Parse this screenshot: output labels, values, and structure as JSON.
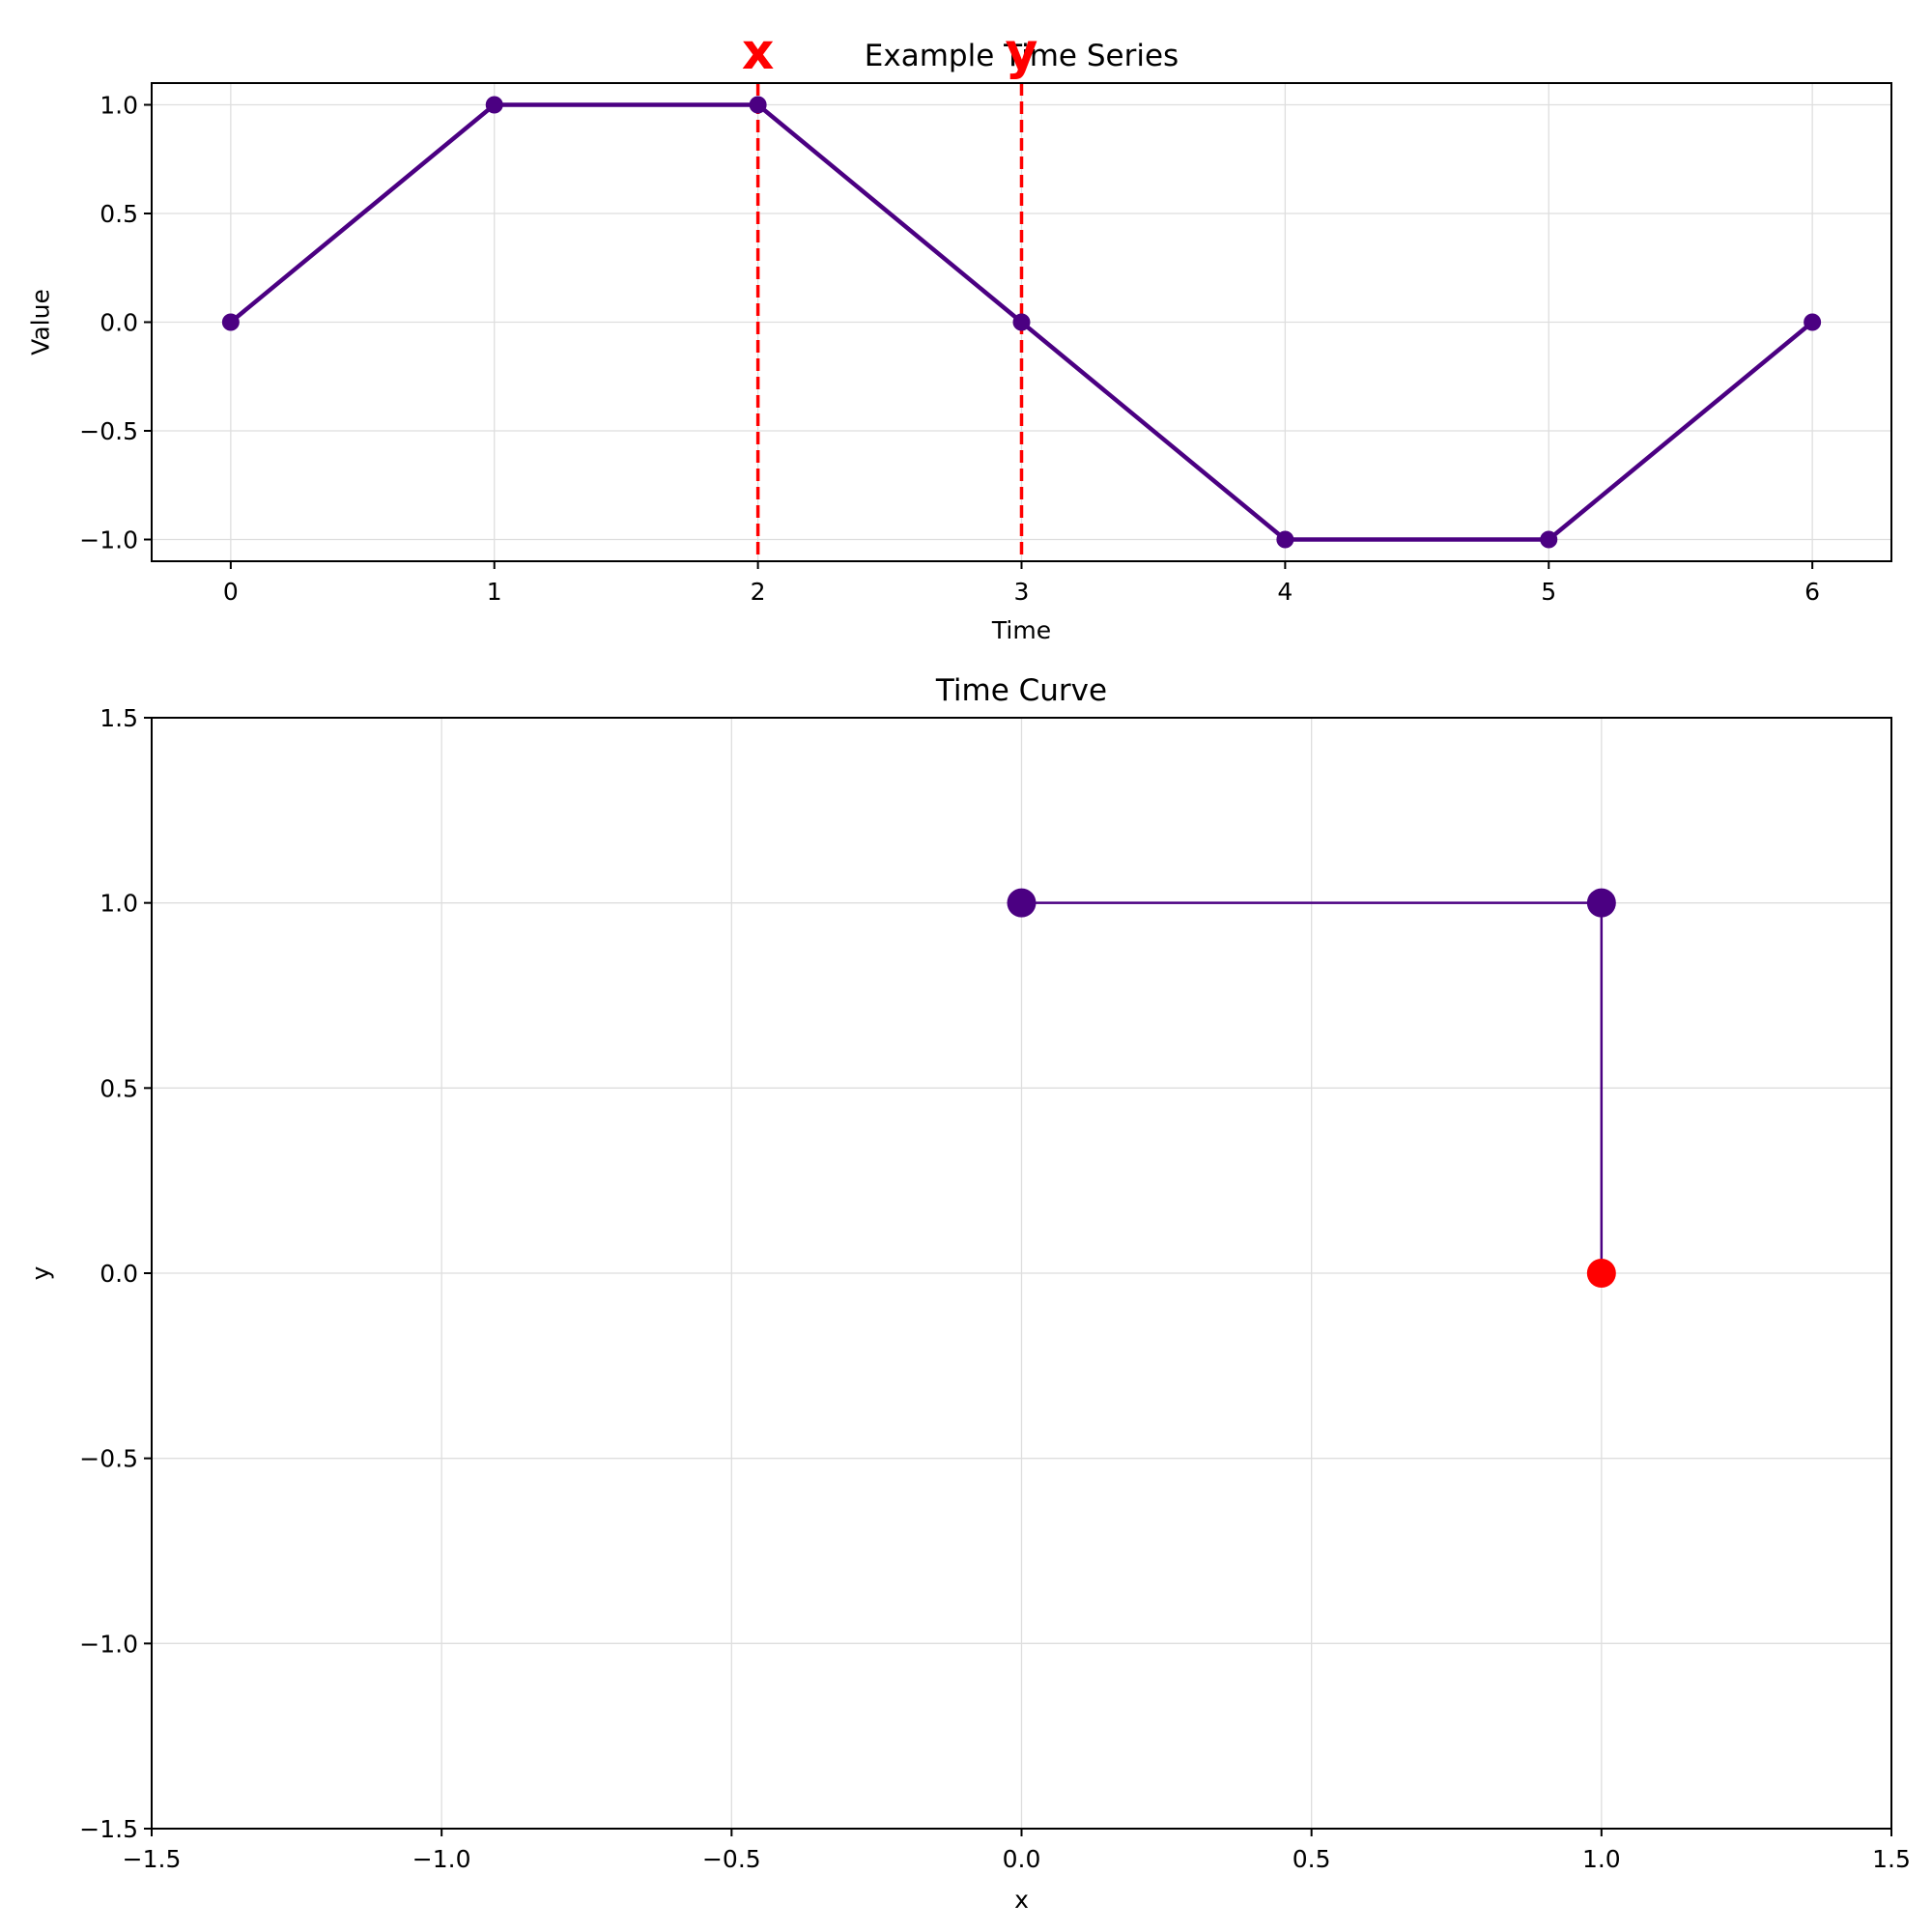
{
  "chart_data": [
    {
      "type": "line",
      "title": "Example Time Series",
      "xlabel": "Time",
      "ylabel": "Value",
      "xlim": [
        -0.3,
        6.3
      ],
      "ylim": [
        -1.1,
        1.1
      ],
      "xticks": [
        0,
        1,
        2,
        3,
        4,
        5,
        6
      ],
      "yticks": [
        -1.0,
        -0.5,
        0.0,
        0.5,
        1.0
      ],
      "xtick_labels": [
        "0",
        "1",
        "2",
        "3",
        "4",
        "5",
        "6"
      ],
      "ytick_labels": [
        "−1.0",
        "−0.5",
        "0.0",
        "0.5",
        "1.0"
      ],
      "grid": true,
      "series": [
        {
          "x": [
            0,
            1,
            2,
            3,
            4,
            5,
            6
          ],
          "y": [
            0,
            1,
            1,
            0,
            -1,
            -1,
            0
          ],
          "color": "#4b0082",
          "marker": "circle"
        }
      ],
      "vlines": [
        {
          "x": 2,
          "label": "x",
          "color": "#ff0000",
          "style": "dashed"
        },
        {
          "x": 3,
          "label": "y",
          "color": "#ff0000",
          "style": "dashed"
        }
      ]
    },
    {
      "type": "line",
      "title": "Time Curve",
      "xlabel": "x",
      "ylabel": "y",
      "xlim": [
        -1.5,
        1.5
      ],
      "ylim": [
        -1.5,
        1.5
      ],
      "xticks": [
        -1.5,
        -1.0,
        -0.5,
        0.0,
        0.5,
        1.0,
        1.5
      ],
      "yticks": [
        -1.5,
        -1.0,
        -0.5,
        0.0,
        0.5,
        1.0,
        1.5
      ],
      "xtick_labels": [
        "−1.5",
        "−1.0",
        "−0.5",
        "0.0",
        "0.5",
        "1.0",
        "1.5"
      ],
      "ytick_labels": [
        "−1.5",
        "−1.0",
        "−0.5",
        "0.0",
        "0.5",
        "1.0",
        "1.5"
      ],
      "grid": true,
      "series": [
        {
          "x": [
            0,
            1,
            1
          ],
          "y": [
            1,
            1,
            0
          ],
          "color": "#4b0082",
          "point_colors": [
            "#4b0082",
            "#4b0082",
            "#ff0000"
          ],
          "marker": "circle"
        }
      ]
    }
  ]
}
